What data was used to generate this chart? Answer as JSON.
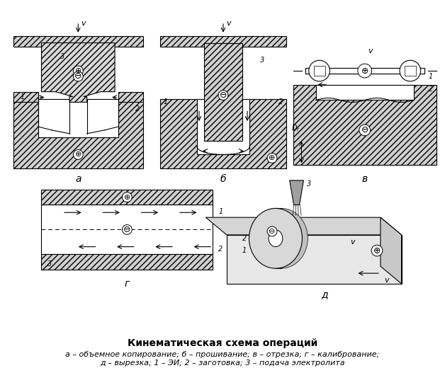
{
  "title": "Кинематическая схема операций",
  "caption_line1": "а – объемное копирование; б – прошивание; в – отрезка; г – калибрование;",
  "caption_line2": "д – вырезка; 1 – ЭИ; 2 – заготовка; 3 – подача электролита",
  "bg_color": "#ffffff",
  "label_a": "а",
  "label_b": "б",
  "label_v": "в",
  "label_g": "г",
  "label_d": "д",
  "hatch_density": "////",
  "title_fontsize": 10,
  "caption_fontsize": 8,
  "label_fontsize": 10
}
